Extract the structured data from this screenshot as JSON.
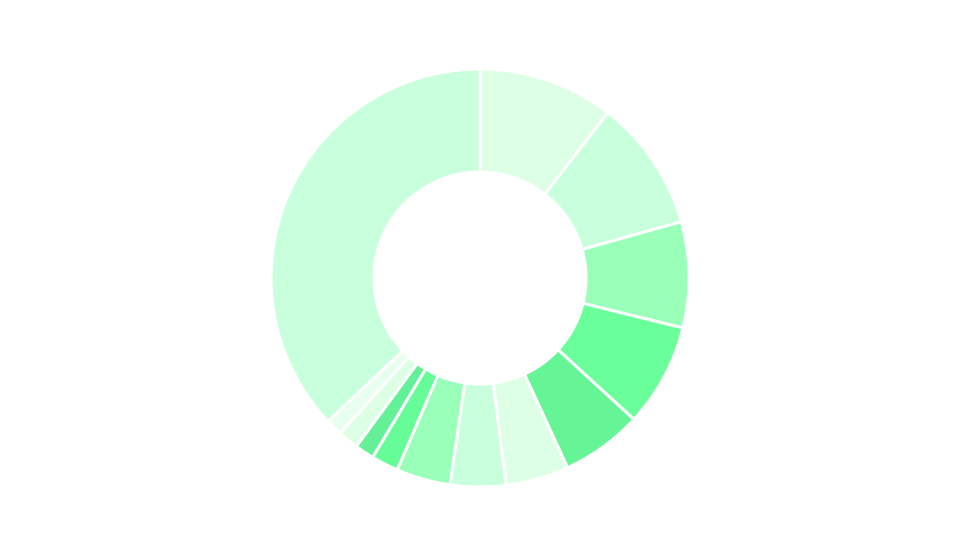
{
  "chart_data": {
    "type": "pie",
    "variant": "donut",
    "title": "",
    "legend": "none",
    "data_labels": false,
    "categories": [
      "",
      "",
      "",
      "",
      "",
      "",
      "",
      "",
      "",
      "",
      "",
      "",
      ""
    ],
    "values": [
      10.5,
      10.2,
      8.2,
      8.0,
      6.3,
      4.9,
      4.3,
      4.2,
      2.1,
      1.5,
      1.6,
      1.3,
      37.1
    ],
    "colors": [
      "#dcffe6",
      "#c8ffdc",
      "#9affb9",
      "#6bff9c",
      "#66f596",
      "#dcffe6",
      "#c8ffdc",
      "#9affb9",
      "#66fd98",
      "#63f097",
      "#dcffe6",
      "#e6ffee",
      "#c8ffdc"
    ],
    "start_angle_deg": 0,
    "direction": "clockwise"
  }
}
